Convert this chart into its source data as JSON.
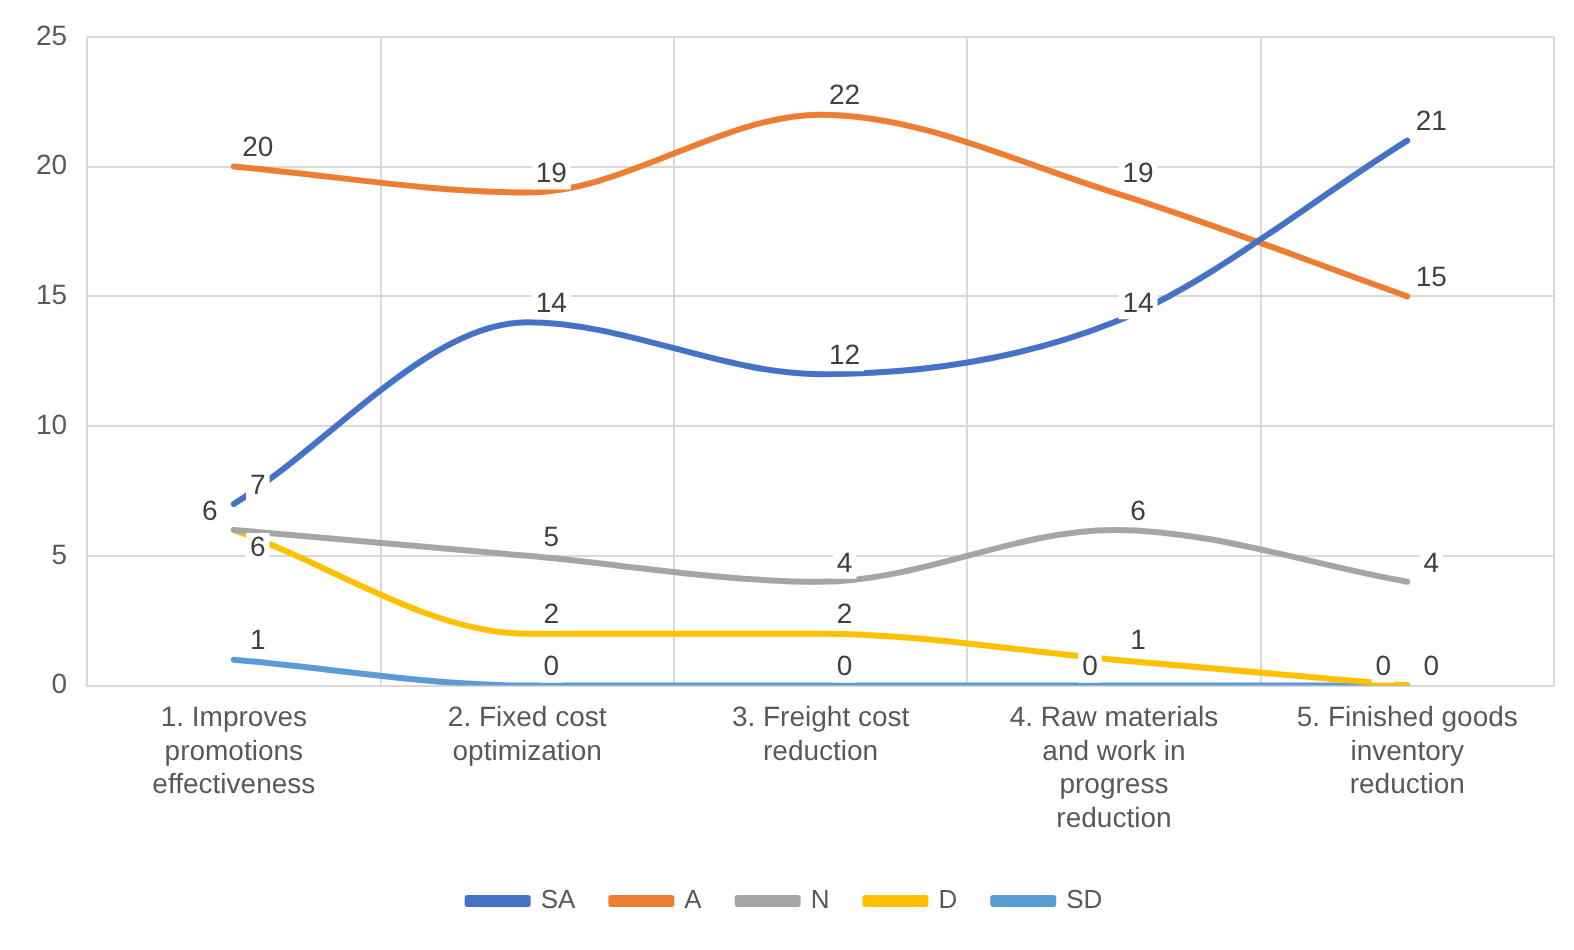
{
  "chart_data": {
    "type": "line",
    "categories": [
      "1. Improves promotions effectiveness",
      "2. Fixed cost optimization",
      "3. Freight cost reduction",
      "4. Raw materials and work in progress reduction",
      "5. Finished goods inventory reduction"
    ],
    "series": [
      {
        "name": "SA",
        "color": "#4472c4",
        "values": [
          7,
          14,
          12,
          14,
          21
        ]
      },
      {
        "name": "A",
        "color": "#ed7d31",
        "values": [
          20,
          19,
          22,
          19,
          15
        ]
      },
      {
        "name": "N",
        "color": "#a5a5a5",
        "values": [
          6,
          5,
          4,
          6,
          4
        ]
      },
      {
        "name": "D",
        "color": "#ffc000",
        "values": [
          6,
          2,
          2,
          1,
          0
        ]
      },
      {
        "name": "SD",
        "color": "#5b9bd5",
        "values": [
          1,
          0,
          0,
          0,
          0
        ]
      }
    ],
    "ylim": [
      0,
      25
    ],
    "yticks": [
      0,
      5,
      10,
      15,
      20,
      25
    ],
    "grid": true,
    "legend": "bottom",
    "data_labels": true,
    "marker": "none",
    "line_style": "solid"
  }
}
